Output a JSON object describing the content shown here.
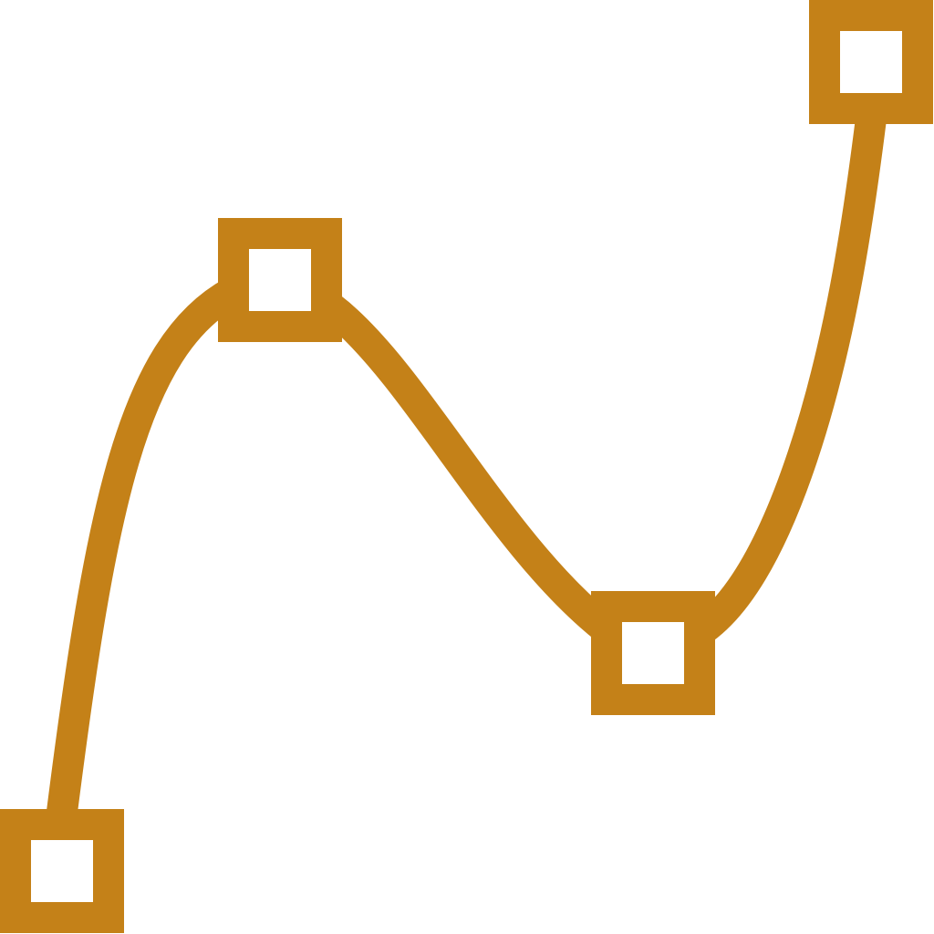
{
  "icon": {
    "name": "bezier-curve-icon",
    "stroke_color": "#c48118",
    "fill_color": "#ffffff",
    "background_color": "#ffffff"
  }
}
